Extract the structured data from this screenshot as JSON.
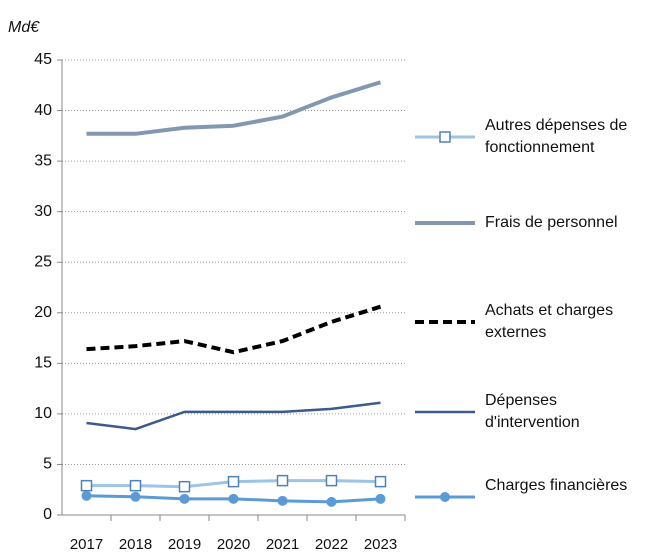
{
  "chart_data": {
    "type": "line",
    "y_label": "Md€",
    "categories": [
      "2017",
      "2018",
      "2019",
      "2020",
      "2021",
      "2022",
      "2023"
    ],
    "ylim": [
      0,
      45
    ],
    "yticks": [
      0,
      5,
      10,
      15,
      20,
      25,
      30,
      35,
      40,
      45
    ],
    "grid": true,
    "legend": "right",
    "series": [
      {
        "name": "Autres dépenses de fonctionnement",
        "color": "#9dc3e6",
        "marker": "square",
        "values": [
          2.9,
          2.9,
          2.8,
          3.3,
          3.4,
          3.4,
          3.3
        ]
      },
      {
        "name": "Frais de personnel",
        "color": "#8497b0",
        "values": [
          37.7,
          37.7,
          38.3,
          38.5,
          39.4,
          41.3,
          42.8
        ]
      },
      {
        "name": "Achats et charges externes",
        "color": "#000000",
        "dash": true,
        "values": [
          16.4,
          16.7,
          17.2,
          16.1,
          17.2,
          19.1,
          20.6
        ]
      },
      {
        "name": "Dépenses d'intervention",
        "color": "#3c5a8c",
        "values": [
          9.1,
          8.5,
          10.2,
          10.2,
          10.2,
          10.5,
          11.1
        ]
      },
      {
        "name": "Charges financières",
        "color": "#5b9bd5",
        "marker": "circle",
        "values": [
          1.9,
          1.8,
          1.6,
          1.6,
          1.4,
          1.3,
          1.6
        ]
      }
    ]
  }
}
